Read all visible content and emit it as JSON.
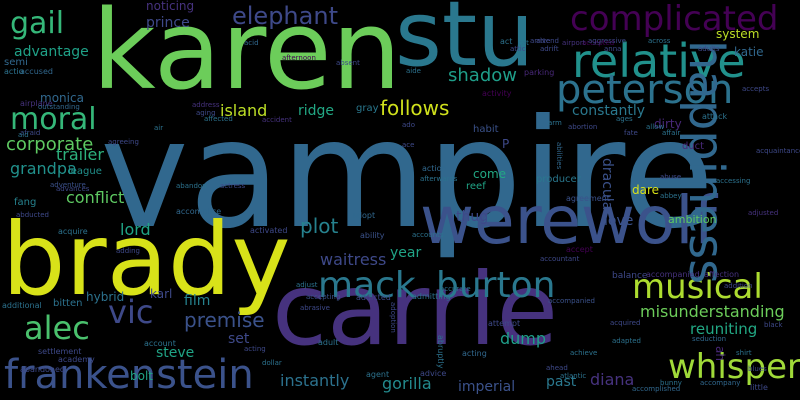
{
  "word_cloud": {
    "colors": {
      "background": "#000000",
      "palette": [
        "#440154",
        "#46327e",
        "#365c8d",
        "#277f8e",
        "#1fa187",
        "#4ac16d",
        "#a0da39",
        "#fde725"
      ]
    },
    "words": [
      {
        "text": "vampire",
        "color": "#31688e"
      },
      {
        "text": "karen",
        "color": "#6ccd5a"
      },
      {
        "text": "stu",
        "color": "#2a788e"
      },
      {
        "text": "brady",
        "color": "#d8e219"
      },
      {
        "text": "carrie",
        "color": "#46327e"
      },
      {
        "text": "werewolf",
        "color": "#3b528b"
      },
      {
        "text": "complicated",
        "color": "#440154"
      },
      {
        "text": "relative",
        "color": "#21918c"
      },
      {
        "text": "peterson",
        "color": "#2c728e"
      },
      {
        "text": "frankenstein",
        "color": "#3b528b"
      },
      {
        "text": "whisper",
        "color": "#a0da39"
      },
      {
        "text": "musical",
        "color": "#addc30"
      },
      {
        "text": "mack",
        "color": "#2a788e"
      },
      {
        "text": "burton",
        "color": "#2a788e"
      },
      {
        "text": "happiness",
        "color": "#31688e"
      },
      {
        "text": "vic",
        "color": "#3e4989"
      },
      {
        "text": "alec",
        "color": "#4ac16d"
      },
      {
        "text": "moral",
        "color": "#35b779"
      },
      {
        "text": "gail",
        "color": "#35b779"
      },
      {
        "text": "elephant",
        "color": "#3e4989"
      },
      {
        "text": "shadow",
        "color": "#1f9e89"
      },
      {
        "text": "follows",
        "color": "#d0e11c"
      },
      {
        "text": "corporate",
        "color": "#5ec962"
      },
      {
        "text": "trailer",
        "color": "#2db27d"
      },
      {
        "text": "conflict",
        "color": "#5ec962"
      },
      {
        "text": "plot",
        "color": "#26828e"
      },
      {
        "text": "premise",
        "color": "#3b528b"
      },
      {
        "text": "misunderstanding",
        "color": "#6ccd5a"
      },
      {
        "text": "reuniting",
        "color": "#22a884"
      },
      {
        "text": "steve",
        "color": "#20a486"
      },
      {
        "text": "gorilla",
        "color": "#238a8d"
      },
      {
        "text": "instantly",
        "color": "#2c728e"
      },
      {
        "text": "imperial",
        "color": "#3b528b"
      },
      {
        "text": "past",
        "color": "#2a788e"
      },
      {
        "text": "diana",
        "color": "#46327e"
      },
      {
        "text": "dump",
        "color": "#1f9e89"
      },
      {
        "text": "set",
        "color": "#3e4989"
      },
      {
        "text": "film",
        "color": "#26828e"
      },
      {
        "text": "lord",
        "color": "#20a486"
      },
      {
        "text": "waitress",
        "color": "#3e4989"
      },
      {
        "text": "island",
        "color": "#bddf26"
      },
      {
        "text": "ridge",
        "color": "#22a884"
      },
      {
        "text": "grandpa",
        "color": "#21918c"
      },
      {
        "text": "advantage",
        "color": "#1fa187"
      },
      {
        "text": "prince",
        "color": "#3e4989"
      },
      {
        "text": "monica",
        "color": "#31688e"
      },
      {
        "text": "constantly",
        "color": "#2a788e"
      },
      {
        "text": "dirty",
        "color": "#482878"
      },
      {
        "text": "dracula",
        "color": "#3b528b"
      },
      {
        "text": "katie",
        "color": "#31688e"
      },
      {
        "text": "system",
        "color": "#bddf26"
      },
      {
        "text": "love",
        "color": "#3b528b"
      },
      {
        "text": "dare",
        "color": "#d8e219"
      },
      {
        "text": "thug",
        "color": "#3e4989"
      },
      {
        "text": "come",
        "color": "#22a884"
      },
      {
        "text": "year",
        "color": "#20a486"
      },
      {
        "text": "ambition",
        "color": "#5ec962"
      },
      {
        "text": "hybrid",
        "color": "#2c728e"
      },
      {
        "text": "karl",
        "color": "#3e4989"
      },
      {
        "text": "bolt",
        "color": "#20a486"
      },
      {
        "text": "fang",
        "color": "#26828e"
      },
      {
        "text": "league",
        "color": "#21918c"
      },
      {
        "text": "reef",
        "color": "#20a486"
      },
      {
        "text": "producer",
        "color": "#2a788e"
      },
      {
        "text": "noticing",
        "color": "#46327e"
      },
      {
        "text": "duct",
        "color": "#482878"
      },
      {
        "text": "ah",
        "color": "#482878"
      },
      {
        "text": "P",
        "color": "#3e4989"
      },
      {
        "text": "gray",
        "color": "#2a788e"
      },
      {
        "text": "habit",
        "color": "#3b528b"
      },
      {
        "text": "bitten",
        "color": "#2c728e"
      },
      {
        "text": "settlement",
        "color": "#3e4989"
      },
      {
        "text": "activity",
        "color": "#440154"
      },
      {
        "text": "parking",
        "color": "#482878"
      },
      {
        "text": "balance",
        "color": "#3e4989"
      },
      {
        "text": "accompanied",
        "color": "#46327e"
      },
      {
        "text": "affection",
        "color": "#46327e"
      },
      {
        "text": "afternoon",
        "color": "#440154"
      },
      {
        "text": "advice",
        "color": "#3e4989"
      },
      {
        "text": "abruptly",
        "color": "#2c728e"
      },
      {
        "text": "acting",
        "color": "#31688e"
      },
      {
        "text": "attempt",
        "color": "#3e4989"
      },
      {
        "text": "accept",
        "color": "#440154"
      },
      {
        "text": "adult",
        "color": "#2c728e"
      },
      {
        "text": "agent",
        "color": "#2c728e"
      },
      {
        "text": "accused",
        "color": "#31688e"
      },
      {
        "text": "ability",
        "color": "#3b528b"
      },
      {
        "text": "adopt",
        "color": "#31688e"
      },
      {
        "text": "activated",
        "color": "#3e4989"
      },
      {
        "text": "airplane",
        "color": "#46327e"
      },
      {
        "text": "abandoned",
        "color": "#3e4989"
      },
      {
        "text": "account",
        "color": "#2c728e"
      },
      {
        "text": "academy",
        "color": "#3e4989"
      },
      {
        "text": "abbey",
        "color": "#2c728e"
      },
      {
        "text": "abuse",
        "color": "#3e4989"
      },
      {
        "text": "accident",
        "color": "#46327e"
      },
      {
        "text": "additional",
        "color": "#2c728e"
      },
      {
        "text": "accomplice",
        "color": "#31688e"
      },
      {
        "text": "agreement",
        "color": "#3b528b"
      },
      {
        "text": "abducted",
        "color": "#3e4989"
      },
      {
        "text": "action",
        "color": "#31688e"
      },
      {
        "text": "afterwards",
        "color": "#2c728e"
      },
      {
        "text": "accessing",
        "color": "#2c728e"
      },
      {
        "text": "addicted",
        "color": "#3e4989"
      },
      {
        "text": "admitting",
        "color": "#2c728e"
      },
      {
        "text": "accepted",
        "color": "#440154"
      },
      {
        "text": "acquire",
        "color": "#2c728e"
      },
      {
        "text": "adding",
        "color": "#3e4989"
      },
      {
        "text": "atlantic",
        "color": "#2c728e"
      },
      {
        "text": "seduction",
        "color": "#31688e"
      },
      {
        "text": "addition",
        "color": "#3e4989"
      },
      {
        "text": "affair",
        "color": "#2c728e"
      },
      {
        "text": "attack",
        "color": "#2c728e"
      },
      {
        "text": "acquaintance",
        "color": "#3e4989"
      },
      {
        "text": "adjusted",
        "color": "#46327e"
      },
      {
        "text": "accompanied",
        "color": "#3b528b"
      },
      {
        "text": "adjust",
        "color": "#2c728e"
      },
      {
        "text": "abrasive",
        "color": "#3e4989"
      },
      {
        "text": "accepting",
        "color": "#3b528b"
      },
      {
        "text": "aging",
        "color": "#3e4989"
      },
      {
        "text": "address",
        "color": "#46327e"
      },
      {
        "text": "absent",
        "color": "#3e4989"
      },
      {
        "text": "airport",
        "color": "#46327e"
      },
      {
        "text": "aggressive",
        "color": "#3e4989"
      },
      {
        "text": "across",
        "color": "#2c728e"
      },
      {
        "text": "adults",
        "color": "#3e4989"
      },
      {
        "text": "accepts",
        "color": "#3e4989"
      },
      {
        "text": "outstanding",
        "color": "#31688e"
      },
      {
        "text": "affected",
        "color": "#2c728e"
      },
      {
        "text": "actress",
        "color": "#3e4989"
      },
      {
        "text": "abortion",
        "color": "#3e4989"
      },
      {
        "text": "adventure",
        "color": "#3b528b"
      },
      {
        "text": "advances",
        "color": "#3e4989"
      },
      {
        "text": "abandon",
        "color": "#2c728e"
      },
      {
        "text": "acid",
        "color": "#31688e"
      },
      {
        "text": "act",
        "color": "#2c728e"
      },
      {
        "text": "aide",
        "color": "#2c728e"
      },
      {
        "text": "afraid",
        "color": "#3e4989"
      },
      {
        "text": "attend",
        "color": "#3e4989"
      },
      {
        "text": "semi",
        "color": "#31688e"
      },
      {
        "text": "actio",
        "color": "#2c728e"
      },
      {
        "text": "air",
        "color": "#2c728e"
      },
      {
        "text": "ace",
        "color": "#3e4989"
      },
      {
        "text": "aid",
        "color": "#2c728e"
      },
      {
        "text": "ado",
        "color": "#3e4989"
      },
      {
        "text": "agreeing",
        "color": "#3e4989"
      },
      {
        "text": "black",
        "color": "#3e4989"
      },
      {
        "text": "shirt",
        "color": "#2c728e"
      },
      {
        "text": "blues",
        "color": "#3e4989"
      },
      {
        "text": "acting",
        "color": "#3e4989"
      },
      {
        "text": "dollar",
        "color": "#2c728e"
      },
      {
        "text": "accompany",
        "color": "#31688e"
      },
      {
        "text": "accomplished",
        "color": "#31688e"
      },
      {
        "text": "acquired",
        "color": "#3e4989"
      },
      {
        "text": "adapted",
        "color": "#2c728e"
      },
      {
        "text": "arm",
        "color": "#2c728e"
      },
      {
        "text": "abilities",
        "color": "#31688e"
      },
      {
        "text": "ahead",
        "color": "#3e4989"
      },
      {
        "text": "achieve",
        "color": "#2c728e"
      },
      {
        "text": "bunny",
        "color": "#2c728e"
      },
      {
        "text": "accounts",
        "color": "#2c728e"
      },
      {
        "text": "adoption",
        "color": "#3e4989"
      },
      {
        "text": "accountant",
        "color": "#3e4989"
      },
      {
        "text": "anna",
        "color": "#3e4989"
      },
      {
        "text": "arrive",
        "color": "#3e4989"
      },
      {
        "text": "cat",
        "color": "#2c728e"
      },
      {
        "text": "attic",
        "color": "#3e4989"
      },
      {
        "text": "adrift",
        "color": "#3e4989"
      },
      {
        "text": "accurate",
        "color": "#2c728e"
      },
      {
        "text": "little",
        "color": "#3e4989"
      },
      {
        "text": "fate",
        "color": "#3e4989"
      },
      {
        "text": "ages",
        "color": "#2c728e"
      },
      {
        "text": "allow",
        "color": "#2c728e"
      }
    ]
  }
}
